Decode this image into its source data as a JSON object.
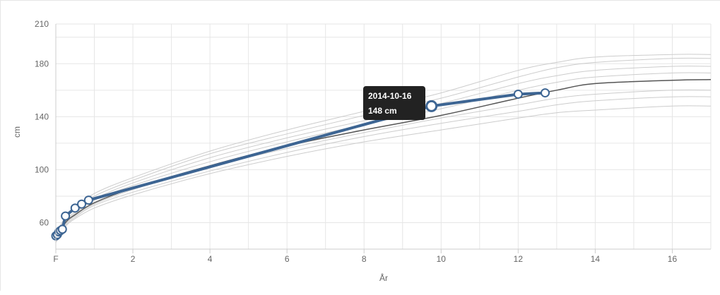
{
  "chart_data": {
    "type": "line",
    "xlabel": "År",
    "ylabel": "cm",
    "xlim": [
      0,
      17
    ],
    "ylim": [
      40,
      210
    ],
    "x_ticks": [
      {
        "value": 0,
        "label": "F"
      },
      {
        "value": 2,
        "label": "2"
      },
      {
        "value": 4,
        "label": "4"
      },
      {
        "value": 6,
        "label": "6"
      },
      {
        "value": 8,
        "label": "8"
      },
      {
        "value": 10,
        "label": "10"
      },
      {
        "value": 12,
        "label": "12"
      },
      {
        "value": 14,
        "label": "14"
      },
      {
        "value": 16,
        "label": "16"
      }
    ],
    "y_ticks": [
      {
        "value": 60,
        "label": "60"
      },
      {
        "value": 100,
        "label": "100"
      },
      {
        "value": 140,
        "label": "140"
      },
      {
        "value": 180,
        "label": "180"
      },
      {
        "value": 210,
        "label": "210"
      }
    ],
    "grid": true,
    "x_grid_step": 1,
    "y_grid_step": 20,
    "colors": {
      "measured": "#3d6593",
      "median": "#555555",
      "percentile": "#cccccc",
      "grid": "#e6e6e6",
      "tooltip_bg": "#222222"
    },
    "reference_curves": [
      {
        "role": "percentile",
        "x": [
          0,
          0.25,
          0.5,
          1,
          2,
          4,
          6,
          8,
          10,
          12,
          13,
          14,
          16,
          17
        ],
        "y": [
          45,
          57,
          63,
          71,
          81,
          97,
          110,
          121,
          130,
          139,
          143,
          145,
          148,
          148
        ]
      },
      {
        "role": "percentile",
        "x": [
          0,
          0.25,
          0.5,
          1,
          2,
          4,
          6,
          8,
          10,
          12,
          13,
          14,
          16,
          17
        ],
        "y": [
          46,
          58,
          64,
          73,
          83,
          99,
          113,
          125,
          135,
          144,
          149,
          152,
          155,
          155
        ]
      },
      {
        "role": "percentile",
        "x": [
          0,
          0.25,
          0.5,
          1,
          2,
          4,
          6,
          8,
          10,
          12,
          13,
          14,
          16,
          17
        ],
        "y": [
          47,
          59,
          65,
          74,
          85,
          102,
          116,
          128,
          139,
          149,
          154,
          157,
          160,
          160
        ]
      },
      {
        "role": "median",
        "x": [
          0,
          0.25,
          0.5,
          1,
          2,
          4,
          6,
          8,
          10,
          12,
          13,
          14,
          16,
          17
        ],
        "y": [
          48,
          60,
          66,
          75,
          86,
          103,
          118,
          130,
          141,
          154,
          160,
          165,
          167.5,
          168
        ]
      },
      {
        "role": "percentile",
        "x": [
          0,
          0.25,
          0.5,
          1,
          2,
          4,
          6,
          8,
          10,
          12,
          13,
          14,
          16,
          17
        ],
        "y": [
          49,
          61,
          67,
          77,
          88,
          106,
          121,
          134,
          146,
          160,
          166,
          170,
          173,
          173
        ]
      },
      {
        "role": "percentile",
        "x": [
          0,
          0.25,
          0.5,
          1,
          2,
          4,
          6,
          8,
          10,
          12,
          13,
          14,
          16,
          17
        ],
        "y": [
          50,
          62,
          68,
          78,
          90,
          109,
          124,
          137,
          150,
          165,
          171,
          175,
          178,
          178
        ]
      },
      {
        "role": "percentile",
        "x": [
          0,
          0.25,
          0.5,
          1,
          2,
          4,
          6,
          8,
          10,
          12,
          13,
          14,
          16,
          17
        ],
        "y": [
          51,
          63,
          70,
          80,
          92,
          112,
          127,
          141,
          154,
          170,
          177,
          181,
          184,
          184
        ]
      },
      {
        "role": "percentile",
        "x": [
          0,
          0.25,
          0.5,
          1,
          2,
          4,
          6,
          8,
          10,
          12,
          13,
          14,
          16,
          17
        ],
        "y": [
          52,
          64,
          71,
          82,
          94,
          114,
          130,
          144,
          158,
          175,
          181,
          185,
          187,
          187
        ]
      }
    ],
    "series": [
      {
        "role": "measured",
        "x": [
          0.0,
          0.04,
          0.08,
          0.12,
          0.17,
          0.25,
          0.5,
          0.67,
          0.85,
          9.75,
          12.0,
          12.7
        ],
        "y": [
          50,
          51,
          53,
          54,
          55,
          65,
          71,
          74,
          77,
          148,
          157,
          158
        ],
        "highlight_index": 9
      }
    ],
    "annotations": [
      {
        "type": "tooltip",
        "date": "2014-10-16",
        "value": "148 cm"
      }
    ]
  }
}
